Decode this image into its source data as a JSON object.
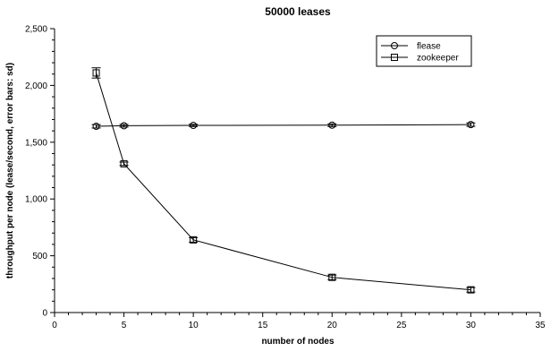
{
  "chart_data": {
    "type": "line",
    "title": "50000 leases",
    "xlabel": "number of nodes",
    "ylabel": "throughput per node (lease/second, error bars: sd)",
    "xlim": [
      0,
      35
    ],
    "ylim": [
      0,
      2500
    ],
    "x_ticks": [
      0,
      5,
      10,
      15,
      20,
      25,
      30,
      35
    ],
    "x_tick_labels": [
      "0",
      "5",
      "10",
      "15",
      "20",
      "25",
      "30",
      "35"
    ],
    "y_ticks": [
      0,
      500,
      1000,
      1500,
      2000,
      2500
    ],
    "y_tick_labels": [
      "0",
      "500",
      "1,000",
      "1,500",
      "2,000",
      "2,500"
    ],
    "grid": false,
    "legend_position": "top-right",
    "series": [
      {
        "name": "flease",
        "marker": "circle",
        "color": "#000000",
        "x": [
          3,
          5,
          10,
          20,
          30
        ],
        "y": [
          1640,
          1645,
          1648,
          1650,
          1655
        ],
        "sd": [
          15,
          12,
          10,
          12,
          15
        ]
      },
      {
        "name": "zookeeper",
        "marker": "square",
        "color": "#000000",
        "x": [
          3,
          5,
          10,
          20,
          30
        ],
        "y": [
          2110,
          1310,
          640,
          310,
          200
        ],
        "sd": [
          45,
          15,
          20,
          20,
          20
        ]
      }
    ]
  }
}
